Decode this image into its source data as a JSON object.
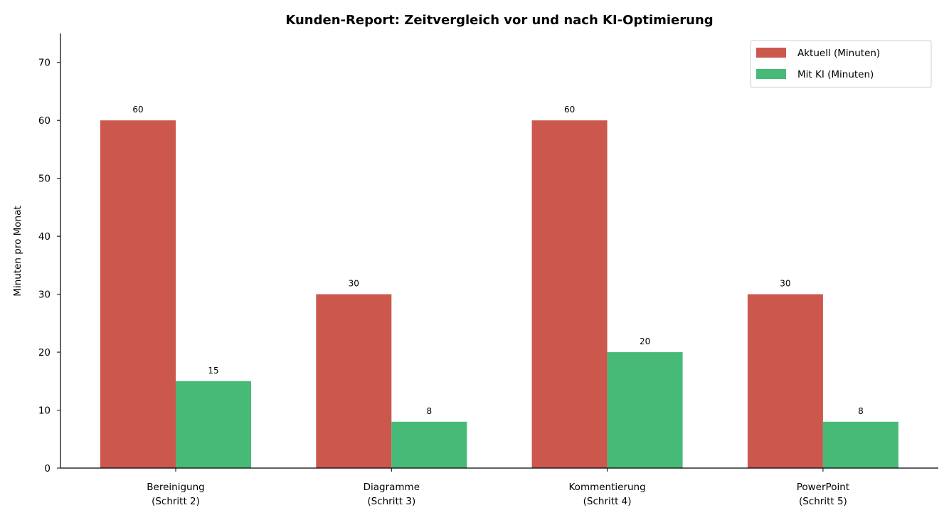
{
  "chart_data": {
    "type": "bar",
    "title": "Kunden-Report: Zeitvergleich vor und nach KI-Optimierung",
    "ylabel": "Minuten pro Monat",
    "xlabel": "",
    "categories": [
      [
        "Bereinigung",
        "(Schritt 2)"
      ],
      [
        "Diagramme",
        "(Schritt 3)"
      ],
      [
        "Kommentierung",
        "(Schritt 4)"
      ],
      [
        "PowerPoint",
        "(Schritt 5)"
      ]
    ],
    "series": [
      {
        "name": "Aktuell (Minuten)",
        "values": [
          60,
          30,
          60,
          30
        ],
        "color": "#cb574d"
      },
      {
        "name": "Mit KI (Minuten)",
        "values": [
          15,
          8,
          20,
          8
        ],
        "color": "#48ba78"
      }
    ],
    "ylim": [
      0,
      75
    ],
    "yticks": [
      0,
      10,
      20,
      30,
      40,
      50,
      60,
      70
    ],
    "grid": false,
    "legend_position": "top-right",
    "data_labels": true
  }
}
